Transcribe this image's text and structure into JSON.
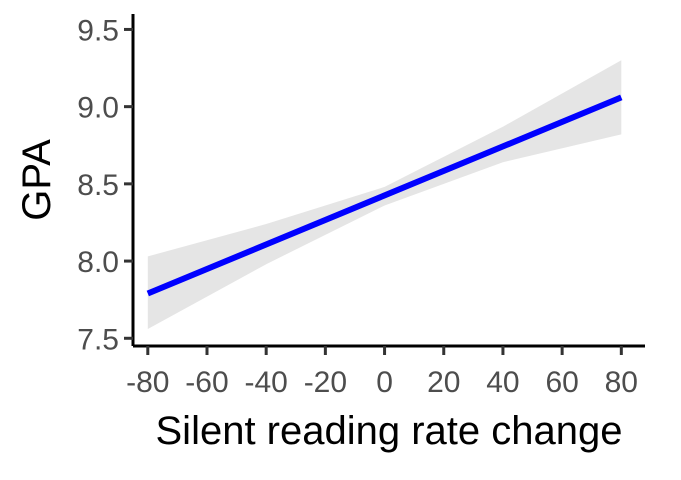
{
  "chart_data": {
    "type": "line",
    "title": "",
    "xlabel": "Silent reading rate change",
    "ylabel": "GPA",
    "xlim": [
      -85,
      88
    ],
    "ylim": [
      7.45,
      9.6
    ],
    "x_ticks": [
      -80,
      -60,
      -40,
      -20,
      0,
      20,
      40,
      60,
      80
    ],
    "x_tick_labels": [
      "-80",
      "-60",
      "-40",
      "-20",
      "0",
      "20",
      "40",
      "60",
      "80"
    ],
    "y_ticks": [
      7.5,
      8.0,
      8.5,
      9.0,
      9.5
    ],
    "y_tick_labels": [
      "7.5",
      "8.0",
      "8.5",
      "9.0",
      "9.5"
    ],
    "grid": false,
    "legend": "none",
    "series": [
      {
        "x": [
          -80,
          80
        ],
        "y": [
          7.79,
          9.06
        ],
        "color": "#0000ff",
        "confidence_band": {
          "x": [
            -80,
            -40,
            0,
            40,
            80
          ],
          "lower": [
            7.56,
            7.98,
            8.36,
            8.64,
            8.82
          ],
          "upper": [
            8.03,
            8.24,
            8.48,
            8.87,
            9.3
          ],
          "color": "#e5e5e5"
        }
      }
    ]
  }
}
